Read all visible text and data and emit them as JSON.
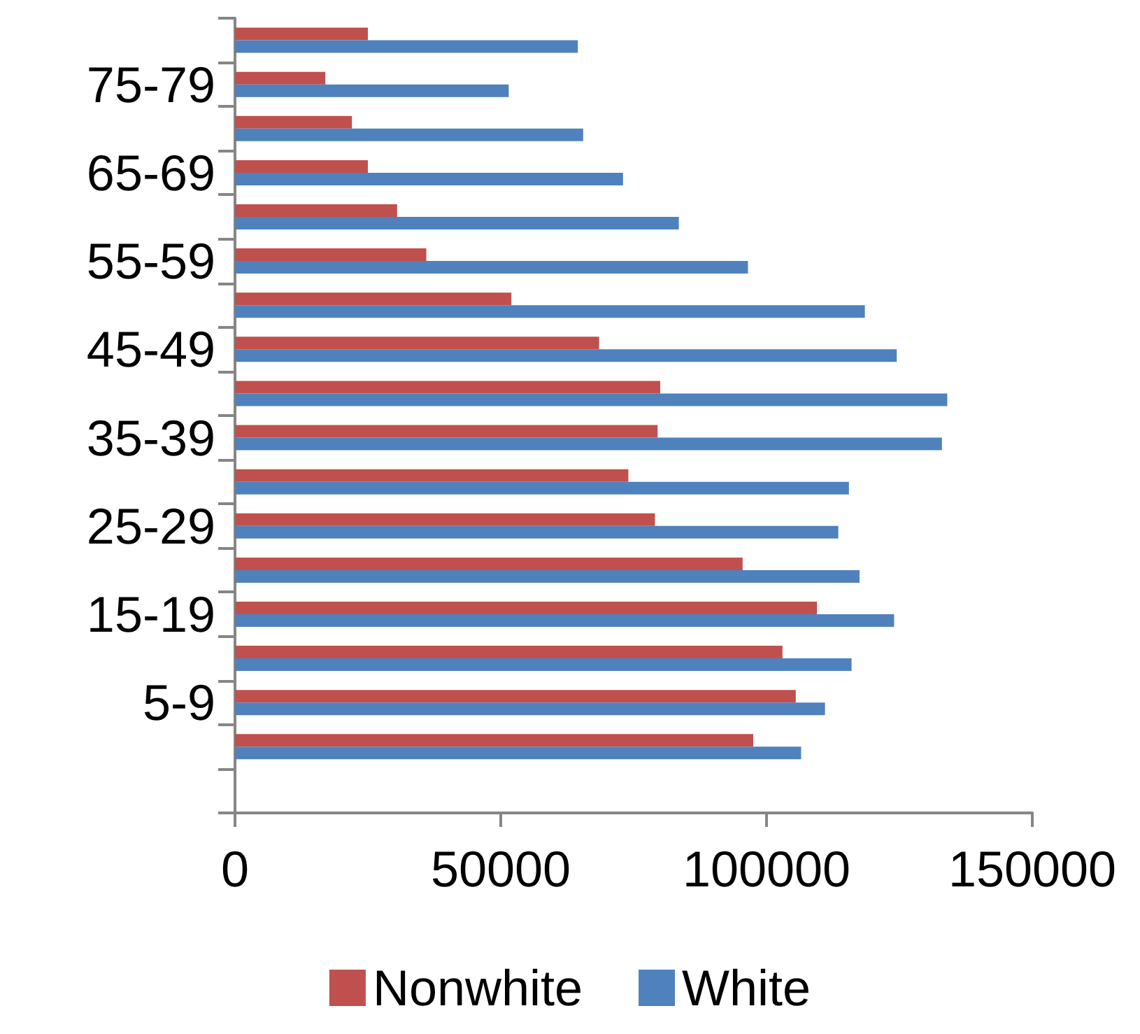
{
  "chart_data": {
    "type": "bar",
    "orientation": "horizontal",
    "categories": [
      null,
      "75-79",
      null,
      "65-69",
      null,
      "55-59",
      null,
      "45-49",
      null,
      "35-39",
      null,
      "25-29",
      null,
      "15-19",
      null,
      "5-9",
      null,
      null
    ],
    "series": [
      {
        "name": "Nonwhite",
        "color": "#c0504d",
        "values": [
          25000,
          17000,
          22000,
          25000,
          30500,
          36000,
          52000,
          68500,
          80000,
          79500,
          74000,
          79000,
          95500,
          109500,
          103000,
          105500,
          97500,
          null
        ]
      },
      {
        "name": "White",
        "color": "#4f81bd",
        "values": [
          64500,
          51500,
          65500,
          73000,
          83500,
          96500,
          118500,
          124500,
          134000,
          133000,
          115500,
          113500,
          117500,
          124000,
          116000,
          111000,
          106500,
          null
        ]
      }
    ],
    "xlim": [
      0,
      150000
    ],
    "xticks": [
      0,
      50000,
      100000,
      150000
    ],
    "grid": false,
    "legend": "bottom"
  }
}
